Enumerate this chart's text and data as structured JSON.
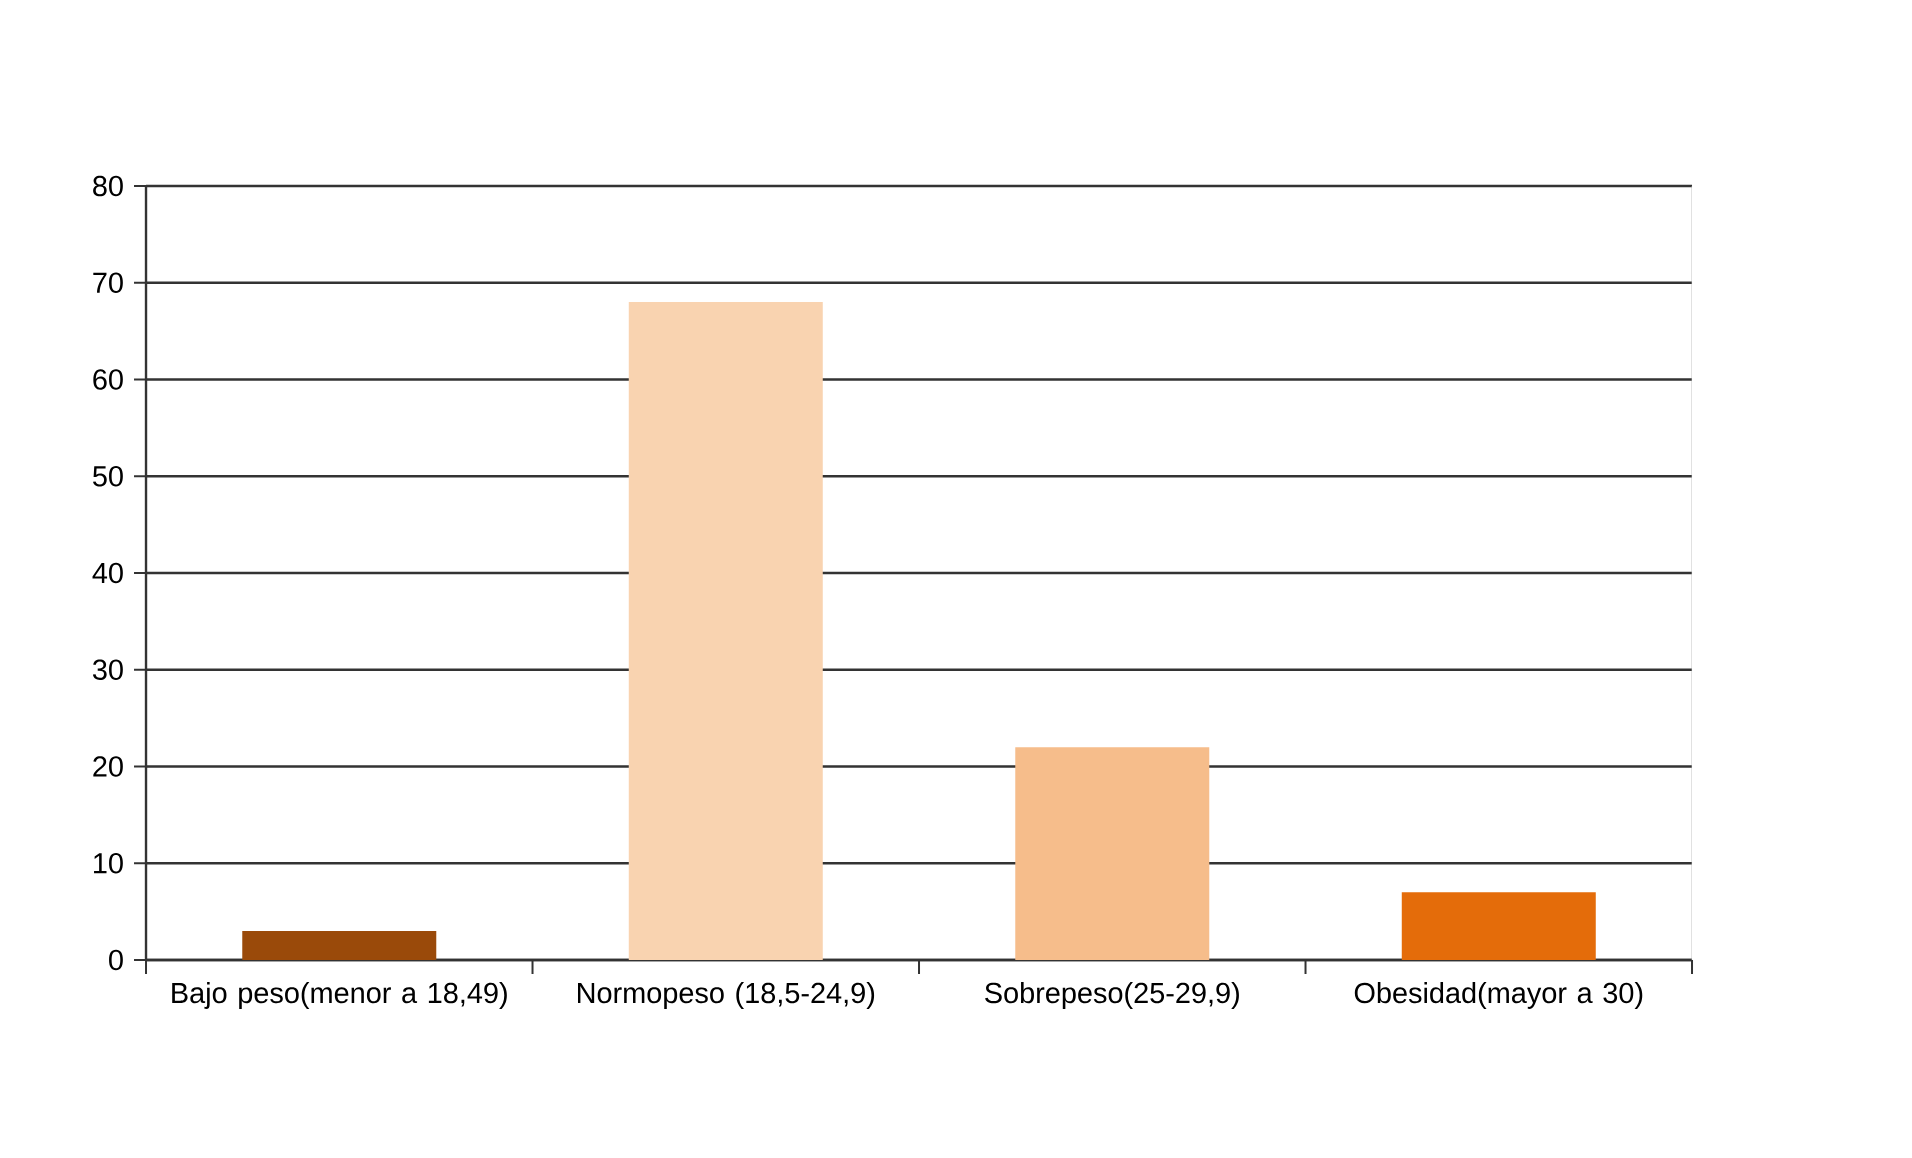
{
  "chart_data": {
    "type": "bar",
    "categories": [
      "Bajo peso(menor a 18,49)",
      "Normopeso (18,5-24,9)",
      "Sobrepeso(25-29,9)",
      "Obesidad(mayor a 30)"
    ],
    "values": [
      3,
      68,
      22,
      7
    ],
    "colors": [
      "#9a4a0a",
      "#f9d3b0",
      "#f6bd8b",
      "#e46c0a"
    ],
    "ylim": [
      0,
      80
    ],
    "yticks": [
      0,
      10,
      20,
      30,
      40,
      50,
      60,
      70,
      80
    ],
    "grid": "y"
  }
}
